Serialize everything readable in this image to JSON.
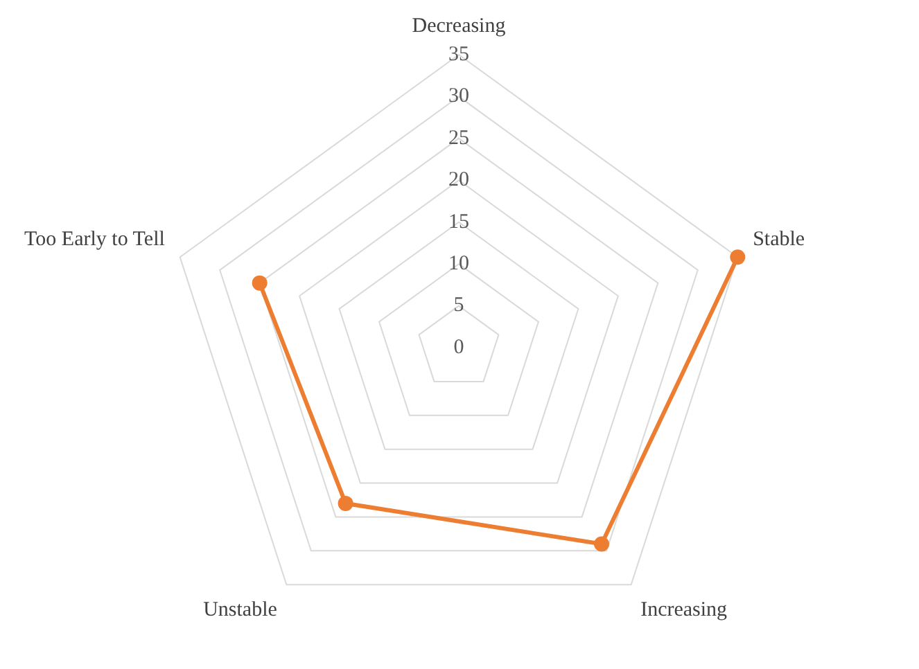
{
  "chart_data": {
    "type": "radar",
    "categories": [
      "Decreasing",
      "Stable",
      "Increasing",
      "Unstable",
      "Too Early to Tell"
    ],
    "series": [
      {
        "color": "#ed7d31",
        "values": [
          null,
          35,
          29,
          23,
          25
        ]
      }
    ],
    "ylim": [
      0,
      35
    ],
    "yticks": [
      0,
      5,
      10,
      15,
      20,
      25,
      30,
      35
    ],
    "grid": true,
    "legend": false,
    "marker": "circle",
    "line_style": "solid"
  }
}
